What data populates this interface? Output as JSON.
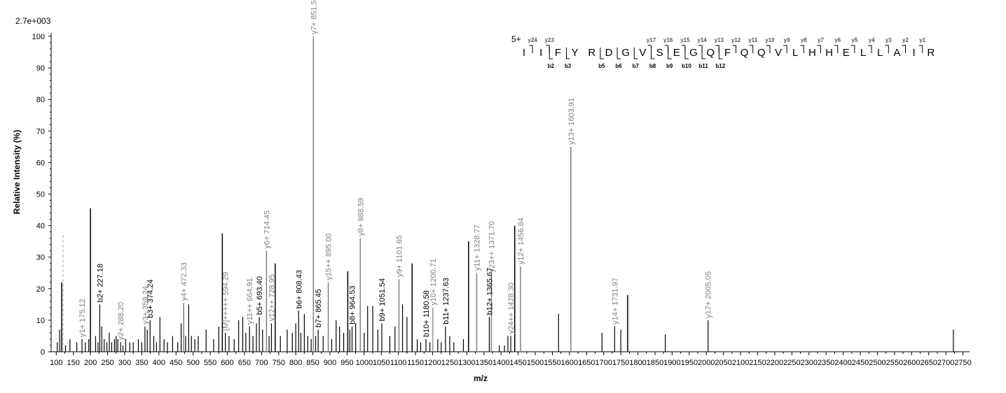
{
  "chart_data": {
    "type": "bar",
    "title": "",
    "scale_label": "2.7e+003",
    "xlabel": "m/z",
    "ylabel": "Relative   Intensity (%)",
    "xlim": [
      90,
      2780
    ],
    "ylim": [
      0,
      100
    ],
    "x_ticks": [
      100,
      150,
      200,
      250,
      300,
      350,
      400,
      450,
      500,
      550,
      600,
      650,
      700,
      750,
      800,
      850,
      900,
      950,
      1000,
      1050,
      1100,
      1150,
      1200,
      1250,
      1300,
      1350,
      1400,
      1450,
      1500,
      1550,
      1600,
      1650,
      1700,
      1750,
      1800,
      1850,
      1900,
      1950,
      2000,
      2050,
      2100,
      2150,
      2200,
      2250,
      2300,
      2350,
      2400,
      2450,
      2500,
      2550,
      2600,
      2650,
      2700,
      2750
    ],
    "x_tick_labels": [
      "100",
      "150",
      "200",
      "250",
      "300",
      "350",
      "400",
      "450",
      "500",
      "550",
      "600",
      "650",
      "700",
      "750",
      "800",
      "850",
      "900",
      "950",
      "1000",
      "1050",
      "1100",
      "1150",
      "1200",
      "1250",
      "1300",
      "1350",
      "1400",
      "1450",
      "1500",
      "1550",
      "1600",
      "1650",
      "1700",
      "1750",
      "1800",
      "1850",
      "1900",
      "1950",
      "2000",
      "2050",
      "2100",
      "2150",
      "2200",
      "2250",
      "2300",
      "2350",
      "2400",
      "2450",
      "2500",
      "2550",
      "2600",
      "2650",
      "2700",
      "2750"
    ],
    "y_ticks": [
      0,
      10,
      20,
      30,
      40,
      50,
      60,
      70,
      80,
      90,
      100
    ],
    "y_tick_labels": [
      "0",
      "10",
      "20",
      "30",
      "40",
      "50",
      "60",
      "70",
      "80",
      "90",
      "100"
    ],
    "peaks": [
      {
        "mz": 103,
        "i": 3
      },
      {
        "mz": 110,
        "i": 7
      },
      {
        "mz": 116,
        "i": 22
      },
      {
        "mz": 127,
        "i": 2
      },
      {
        "mz": 140,
        "i": 4
      },
      {
        "mz": 160,
        "i": 3
      },
      {
        "mz": 175.12,
        "i": 4,
        "label": "y1+ 175.12",
        "kind": "y"
      },
      {
        "mz": 185,
        "i": 3
      },
      {
        "mz": 195,
        "i": 4
      },
      {
        "mz": 200,
        "i": 45.5
      },
      {
        "mz": 215,
        "i": 5
      },
      {
        "mz": 222,
        "i": 3
      },
      {
        "mz": 227.18,
        "i": 15,
        "label": "b2+ 227.18",
        "kind": "b"
      },
      {
        "mz": 233,
        "i": 8
      },
      {
        "mz": 240,
        "i": 4
      },
      {
        "mz": 248,
        "i": 3
      },
      {
        "mz": 255,
        "i": 6
      },
      {
        "mz": 262,
        "i": 3
      },
      {
        "mz": 270,
        "i": 4
      },
      {
        "mz": 275,
        "i": 5
      },
      {
        "mz": 280,
        "i": 4
      },
      {
        "mz": 288.2,
        "i": 3,
        "label": "y2+ 288.20",
        "kind": "y"
      },
      {
        "mz": 295,
        "i": 2
      },
      {
        "mz": 303,
        "i": 4
      },
      {
        "mz": 315,
        "i": 3
      },
      {
        "mz": 325,
        "i": 3
      },
      {
        "mz": 340,
        "i": 4
      },
      {
        "mz": 350,
        "i": 3
      },
      {
        "mz": 359.24,
        "i": 8,
        "label": "y3+ 359.24",
        "kind": "y"
      },
      {
        "mz": 366,
        "i": 7
      },
      {
        "mz": 374.24,
        "i": 10,
        "label": "b3+ 374.24",
        "kind": "b"
      },
      {
        "mz": 385,
        "i": 5
      },
      {
        "mz": 393,
        "i": 3
      },
      {
        "mz": 403,
        "i": 11
      },
      {
        "mz": 415,
        "i": 4
      },
      {
        "mz": 425,
        "i": 3
      },
      {
        "mz": 440,
        "i": 5
      },
      {
        "mz": 455,
        "i": 3
      },
      {
        "mz": 465,
        "i": 9
      },
      {
        "mz": 472.33,
        "i": 15.5,
        "label": "y4+ 472.33",
        "kind": "y"
      },
      {
        "mz": 478,
        "i": 5
      },
      {
        "mz": 487,
        "i": 15
      },
      {
        "mz": 495,
        "i": 5
      },
      {
        "mz": 505,
        "i": 4
      },
      {
        "mz": 515,
        "i": 5
      },
      {
        "mz": 538,
        "i": 7
      },
      {
        "mz": 560,
        "i": 4
      },
      {
        "mz": 575,
        "i": 8
      },
      {
        "mz": 585.41,
        "i": 37.5
      },
      {
        "mz": 594.29,
        "i": 6,
        "label": "[M]+++++ 594.29",
        "kind": "y"
      },
      {
        "mz": 605,
        "i": 5
      },
      {
        "mz": 620,
        "i": 4
      },
      {
        "mz": 633,
        "i": 10
      },
      {
        "mz": 645,
        "i": 11
      },
      {
        "mz": 654,
        "i": 6
      },
      {
        "mz": 664.91,
        "i": 8,
        "label": "y11++ 664.91",
        "kind": "y"
      },
      {
        "mz": 675,
        "i": 5
      },
      {
        "mz": 685,
        "i": 9
      },
      {
        "mz": 693.4,
        "i": 11,
        "label": "b5+ 693.40",
        "kind": "b"
      },
      {
        "mz": 703,
        "i": 7
      },
      {
        "mz": 714.45,
        "i": 32,
        "label": "y6+ 714.45",
        "kind": "y"
      },
      {
        "mz": 722,
        "i": 5
      },
      {
        "mz": 728.95,
        "i": 9,
        "label": "y12++ 728.95",
        "kind": "y"
      },
      {
        "mz": 740,
        "i": 28
      },
      {
        "mz": 755,
        "i": 5
      },
      {
        "mz": 775,
        "i": 7
      },
      {
        "mz": 790,
        "i": 6
      },
      {
        "mz": 800,
        "i": 9
      },
      {
        "mz": 808.43,
        "i": 13,
        "label": "b6+ 808.43",
        "kind": "b"
      },
      {
        "mz": 815,
        "i": 6
      },
      {
        "mz": 825,
        "i": 12
      },
      {
        "mz": 835,
        "i": 5
      },
      {
        "mz": 845,
        "i": 4
      },
      {
        "mz": 851.51,
        "i": 100,
        "label": "y7+ 851.51",
        "kind": "y"
      },
      {
        "mz": 858,
        "i": 5
      },
      {
        "mz": 865.45,
        "i": 7,
        "label": "b7+ 865.45",
        "kind": "b"
      },
      {
        "mz": 880,
        "i": 5
      },
      {
        "mz": 895,
        "i": 22,
        "label": "y15++ 895.00",
        "kind": "y"
      },
      {
        "mz": 905,
        "i": 4
      },
      {
        "mz": 918,
        "i": 10
      },
      {
        "mz": 928,
        "i": 8
      },
      {
        "mz": 940,
        "i": 6
      },
      {
        "mz": 952,
        "i": 25.5
      },
      {
        "mz": 958,
        "i": 7
      },
      {
        "mz": 964.53,
        "i": 8,
        "label": "b8+ 964.53",
        "kind": "b"
      },
      {
        "mz": 975,
        "i": 9
      },
      {
        "mz": 988.59,
        "i": 36,
        "label": "y8+ 988.59",
        "kind": "y"
      },
      {
        "mz": 1000,
        "i": 6
      },
      {
        "mz": 1010,
        "i": 14.5
      },
      {
        "mz": 1025,
        "i": 14.5
      },
      {
        "mz": 1040,
        "i": 7
      },
      {
        "mz": 1051.54,
        "i": 9,
        "label": "b9+ 1051.54",
        "kind": "b"
      },
      {
        "mz": 1075,
        "i": 5
      },
      {
        "mz": 1090,
        "i": 8
      },
      {
        "mz": 1101.65,
        "i": 23,
        "label": "y9+ 1101.65",
        "kind": "y"
      },
      {
        "mz": 1112,
        "i": 15
      },
      {
        "mz": 1125,
        "i": 11
      },
      {
        "mz": 1140,
        "i": 28
      },
      {
        "mz": 1155,
        "i": 4
      },
      {
        "mz": 1165,
        "i": 3
      },
      {
        "mz": 1180.58,
        "i": 4,
        "label": "b10+ 1180.58",
        "kind": "b"
      },
      {
        "mz": 1192,
        "i": 3
      },
      {
        "mz": 1200.71,
        "i": 14,
        "label": "y10+ 1200.71",
        "kind": "y"
      },
      {
        "mz": 1215,
        "i": 4
      },
      {
        "mz": 1225,
        "i": 3
      },
      {
        "mz": 1237.63,
        "i": 8,
        "label": "b11+ 1237.63",
        "kind": "b"
      },
      {
        "mz": 1250,
        "i": 5
      },
      {
        "mz": 1262,
        "i": 3
      },
      {
        "mz": 1290,
        "i": 4
      },
      {
        "mz": 1305,
        "i": 35
      },
      {
        "mz": 1328.77,
        "i": 25,
        "label": "y11+ 1328.77",
        "kind": "y"
      },
      {
        "mz": 1365.67,
        "i": 11,
        "label": "b12+ 1365.67",
        "kind": "b"
      },
      {
        "mz": 1371.7,
        "i": 24.5,
        "label": "y23++ 1371.70",
        "kind": "y"
      },
      {
        "mz": 1395,
        "i": 2
      },
      {
        "mz": 1410,
        "i": 2
      },
      {
        "mz": 1420,
        "i": 5
      },
      {
        "mz": 1428.3,
        "i": 5,
        "label": "y24++ 1428.30",
        "kind": "y"
      },
      {
        "mz": 1440,
        "i": 40
      },
      {
        "mz": 1456.84,
        "i": 27,
        "label": "y12+ 1456.84",
        "kind": "y"
      },
      {
        "mz": 1568,
        "i": 12
      },
      {
        "mz": 1603.91,
        "i": 65,
        "label": "y13+ 1603.91",
        "kind": "y"
      },
      {
        "mz": 1695,
        "i": 6
      },
      {
        "mz": 1731.97,
        "i": 8,
        "label": "y14+ 1731.97",
        "kind": "y"
      },
      {
        "mz": 1750,
        "i": 7
      },
      {
        "mz": 1770,
        "i": 18
      },
      {
        "mz": 1880,
        "i": 5.5
      },
      {
        "mz": 2005.05,
        "i": 10,
        "label": "y17+ 2005.05",
        "kind": "y"
      },
      {
        "mz": 2722,
        "i": 7
      }
    ],
    "dashed_markers": [
      {
        "mz": 120,
        "i": 37
      }
    ],
    "sequence": {
      "charge": "5+",
      "residues": [
        "I",
        "I",
        "F",
        "Y",
        "R",
        "D",
        "G",
        "V",
        "S",
        "E",
        "G",
        "Q",
        "F",
        "Q",
        "Q",
        "V",
        "L",
        "H",
        "H",
        "E",
        "L",
        "L",
        "A",
        "I",
        "R"
      ],
      "y_ions": [
        {
          "after": 1,
          "label": "y24"
        },
        {
          "after": 2,
          "label": "y23"
        },
        {
          "after": 8,
          "label": "y17"
        },
        {
          "after": 9,
          "label": "y16"
        },
        {
          "after": 10,
          "label": "y15"
        },
        {
          "after": 11,
          "label": "y14"
        },
        {
          "after": 12,
          "label": "y13"
        },
        {
          "after": 13,
          "label": "y12"
        },
        {
          "after": 14,
          "label": "y11"
        },
        {
          "after": 15,
          "label": "y10"
        },
        {
          "after": 16,
          "label": "y9"
        },
        {
          "after": 17,
          "label": "y8"
        },
        {
          "after": 18,
          "label": "y7"
        },
        {
          "after": 19,
          "label": "y6"
        },
        {
          "after": 20,
          "label": "y5"
        },
        {
          "after": 21,
          "label": "y4"
        },
        {
          "after": 22,
          "label": "y3"
        },
        {
          "after": 23,
          "label": "y2"
        },
        {
          "after": 24,
          "label": "y1"
        }
      ],
      "b_ions": [
        {
          "after": 2,
          "label": "b2"
        },
        {
          "after": 3,
          "label": "b3"
        },
        {
          "after": 5,
          "label": "b5"
        },
        {
          "after": 6,
          "label": "b6"
        },
        {
          "after": 7,
          "label": "b7"
        },
        {
          "after": 8,
          "label": "b8"
        },
        {
          "after": 9,
          "label": "b9"
        },
        {
          "after": 10,
          "label": "b10"
        },
        {
          "after": 11,
          "label": "b11"
        },
        {
          "after": 12,
          "label": "b12"
        }
      ]
    },
    "colors": {
      "b_label": "#000000",
      "y_label": "#808080",
      "peak": "#000000",
      "matched_y": "#808080",
      "axis": "#000000"
    },
    "grid": false
  }
}
